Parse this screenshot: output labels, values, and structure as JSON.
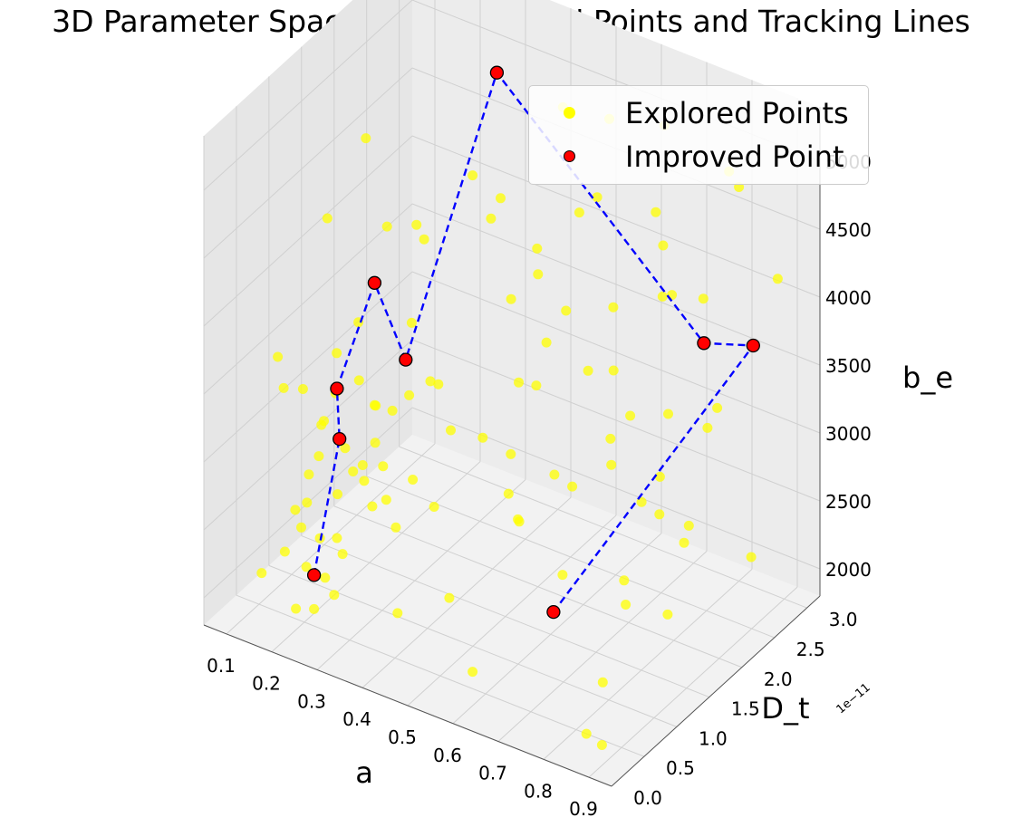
{
  "chart_data": {
    "type": "scatter",
    "title": "3D Parameter Space with Improved Points and Tracking Lines",
    "axes": {
      "x": {
        "label": "a",
        "ticks": [
          "0.1",
          "0.2",
          "0.3",
          "0.4",
          "0.5",
          "0.6",
          "0.7",
          "0.8",
          "0.9"
        ],
        "range": [
          0.05,
          0.95
        ]
      },
      "y": {
        "label": "D_t",
        "ticks": [
          "0.0",
          "0.5",
          "1.0",
          "1.5",
          "2.0",
          "2.5",
          "3.0"
        ],
        "range": [
          0.0,
          3.2
        ],
        "offset_text": "1e−11"
      },
      "z": {
        "label": "b_e",
        "ticks": [
          "2000",
          "2500",
          "3000",
          "3500",
          "4000",
          "4500",
          "5000"
        ],
        "range": [
          1800,
          5400
        ]
      }
    },
    "grid": true,
    "legend": {
      "placement": "upper-right",
      "entries": [
        {
          "label": "Explored Points",
          "color": "#ffff00"
        },
        {
          "label": "Improved Point",
          "color": "#ff0000"
        }
      ]
    },
    "colors": {
      "explored": "#ffff00",
      "improved": "#ff0000",
      "track": "#0000ff",
      "pane": "#f2f2f2",
      "grid": "#d0d0d0"
    },
    "series": [
      {
        "name": "Explored Points",
        "count_note": "dense cluster near a≈0.2–0.3, D_t≈0.3–1.5e-11, b_e≈2000–3500; remainder spread uniformly",
        "points": [
          [
            0.12,
            0.4,
            2100
          ],
          [
            0.15,
            0.8,
            2300
          ],
          [
            0.18,
            0.5,
            2600
          ],
          [
            0.2,
            1.0,
            2200
          ],
          [
            0.22,
            0.6,
            2400
          ],
          [
            0.25,
            0.9,
            2800
          ],
          [
            0.28,
            1.2,
            2500
          ],
          [
            0.3,
            0.7,
            3000
          ],
          [
            0.21,
            0.3,
            2000
          ],
          [
            0.24,
            1.3,
            3100
          ],
          [
            0.26,
            0.4,
            2250
          ],
          [
            0.23,
            0.8,
            2650
          ],
          [
            0.27,
            1.1,
            2950
          ],
          [
            0.19,
            0.6,
            2150
          ],
          [
            0.16,
            1.0,
            2750
          ],
          [
            0.29,
            0.5,
            3200
          ],
          [
            0.31,
            1.4,
            2600
          ],
          [
            0.2,
            0.2,
            2450
          ],
          [
            0.25,
            0.3,
            2050
          ],
          [
            0.22,
            1.2,
            3300
          ],
          [
            0.24,
            0.7,
            3450
          ],
          [
            0.18,
            0.9,
            3050
          ],
          [
            0.27,
            0.6,
            2350
          ],
          [
            0.26,
            1.0,
            2700
          ],
          [
            0.21,
            0.5,
            2900
          ],
          [
            0.23,
            1.5,
            2550
          ],
          [
            0.3,
            0.9,
            3350
          ],
          [
            0.28,
            0.4,
            2150
          ],
          [
            0.2,
            0.8,
            3150
          ],
          [
            0.22,
            0.4,
            2750
          ],
          [
            0.14,
            0.6,
            3400
          ],
          [
            0.33,
            1.0,
            2450
          ],
          [
            0.35,
            0.5,
            2850
          ],
          [
            0.32,
            1.6,
            3250
          ],
          [
            0.25,
            1.8,
            3500
          ],
          [
            0.19,
            1.4,
            3600
          ],
          [
            0.17,
            0.3,
            3800
          ],
          [
            0.24,
            0.2,
            3700
          ],
          [
            0.28,
            2.0,
            3000
          ],
          [
            0.22,
            2.2,
            3900
          ],
          [
            0.3,
            0.3,
            4000
          ],
          [
            0.21,
            1.7,
            4200
          ],
          [
            0.15,
            1.2,
            4400
          ],
          [
            0.12,
            2.0,
            4600
          ],
          [
            0.36,
            2.4,
            4300
          ],
          [
            0.38,
            0.6,
            3550
          ],
          [
            0.4,
            1.1,
            2650
          ],
          [
            0.42,
            0.4,
            2200
          ],
          [
            0.45,
            1.5,
            3050
          ],
          [
            0.48,
            0.8,
            3450
          ],
          [
            0.5,
            2.0,
            4100
          ],
          [
            0.52,
            0.5,
            2400
          ],
          [
            0.55,
            1.2,
            2900
          ],
          [
            0.58,
            2.6,
            3700
          ],
          [
            0.6,
            0.3,
            2050
          ],
          [
            0.62,
            1.8,
            4800
          ],
          [
            0.65,
            2.9,
            5000
          ],
          [
            0.68,
            1.0,
            3300
          ],
          [
            0.7,
            2.2,
            2600
          ],
          [
            0.72,
            0.6,
            4500
          ],
          [
            0.75,
            2.8,
            3900
          ],
          [
            0.78,
            1.4,
            2300
          ],
          [
            0.8,
            3.0,
            4700
          ],
          [
            0.82,
            0.9,
            3600
          ],
          [
            0.85,
            2.5,
            5100
          ],
          [
            0.88,
            1.6,
            2800
          ],
          [
            0.9,
            2.9,
            4200
          ],
          [
            0.92,
            0.4,
            3100
          ],
          [
            0.6,
            2.4,
            5200
          ],
          [
            0.44,
            2.8,
            4900
          ],
          [
            0.34,
            2.7,
            3400
          ],
          [
            0.56,
            3.0,
            2700
          ],
          [
            0.66,
            2.0,
            3100
          ],
          [
            0.74,
            1.1,
            4100
          ],
          [
            0.86,
            2.1,
            3400
          ],
          [
            0.47,
            1.9,
            2300
          ],
          [
            0.53,
            2.7,
            4400
          ],
          [
            0.63,
            0.8,
            4000
          ],
          [
            0.71,
            1.7,
            3800
          ],
          [
            0.79,
            2.3,
            2500
          ],
          [
            0.83,
            0.7,
            2100
          ],
          [
            0.89,
            1.2,
            4800
          ],
          [
            0.41,
            2.6,
            2900
          ],
          [
            0.37,
            1.9,
            4700
          ],
          [
            0.57,
            1.5,
            4600
          ],
          [
            0.69,
            2.6,
            4300
          ],
          [
            0.77,
            0.5,
            2900
          ],
          [
            0.91,
            1.9,
            3700
          ],
          [
            0.46,
            0.3,
            3900
          ],
          [
            0.54,
            1.0,
            5000
          ],
          [
            0.64,
            2.9,
            2400
          ],
          [
            0.73,
            2.4,
            3200
          ],
          [
            0.81,
            1.9,
            4400
          ],
          [
            0.87,
            2.7,
            2200
          ],
          [
            0.93,
            1.0,
            2600
          ],
          [
            0.39,
            0.9,
            4800
          ],
          [
            0.43,
            2.2,
            2100
          ],
          [
            0.49,
            2.5,
            3600
          ],
          [
            0.59,
            1.9,
            2700
          ],
          [
            0.67,
            0.4,
            3700
          ],
          [
            0.76,
            2.0,
            4900
          ],
          [
            0.84,
            1.5,
            3000
          ],
          [
            0.9,
            0.2,
            1950
          ],
          [
            0.88,
            0.1,
            2050
          ]
        ]
      },
      {
        "name": "Improved Point",
        "points": [
          [
            0.25,
            0.3,
            2300
          ],
          [
            0.22,
            0.9,
            3000
          ],
          [
            0.2,
            1.0,
            3300
          ],
          [
            0.24,
            1.3,
            4000
          ],
          [
            0.28,
            1.5,
            3400
          ],
          [
            0.28,
            2.9,
            4900
          ],
          [
            0.78,
            2.6,
            3700
          ],
          [
            0.86,
            2.8,
            3700
          ],
          [
            0.75,
            0.5,
            2600
          ]
        ]
      }
    ]
  }
}
